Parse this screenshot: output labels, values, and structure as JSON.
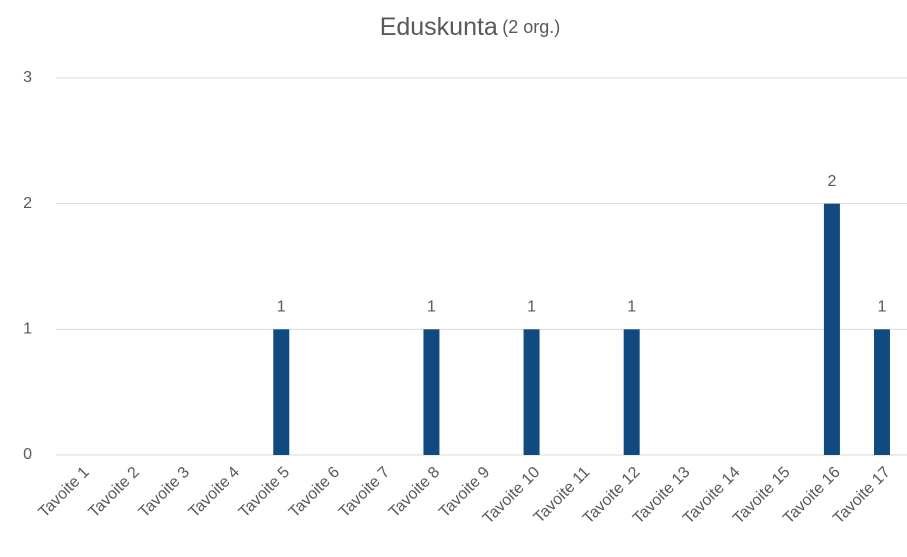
{
  "chart_data": {
    "type": "bar",
    "title": "Eduskunta",
    "subtitle": "(2 org.)",
    "categories": [
      "Tavoite 1",
      "Tavoite 2",
      "Tavoite 3",
      "Tavoite 4",
      "Tavoite 5",
      "Tavoite 6",
      "Tavoite 7",
      "Tavoite 8",
      "Tavoite 9",
      "Tavoite 10",
      "Tavoite 11",
      "Tavoite 12",
      "Tavoite 13",
      "Tavoite 14",
      "Tavoite 15",
      "Tavoite 16",
      "Tavoite 17"
    ],
    "values": [
      0,
      0,
      0,
      0,
      1,
      0,
      0,
      1,
      0,
      1,
      0,
      1,
      0,
      0,
      0,
      2,
      1
    ],
    "value_labels": [
      null,
      null,
      null,
      null,
      "1",
      null,
      null,
      "1",
      null,
      "1",
      null,
      "1",
      null,
      null,
      null,
      "2",
      "1"
    ],
    "color": "#114a80",
    "ylim": [
      0,
      3
    ],
    "yticks": [
      0,
      1,
      2,
      3
    ],
    "grid": true
  }
}
